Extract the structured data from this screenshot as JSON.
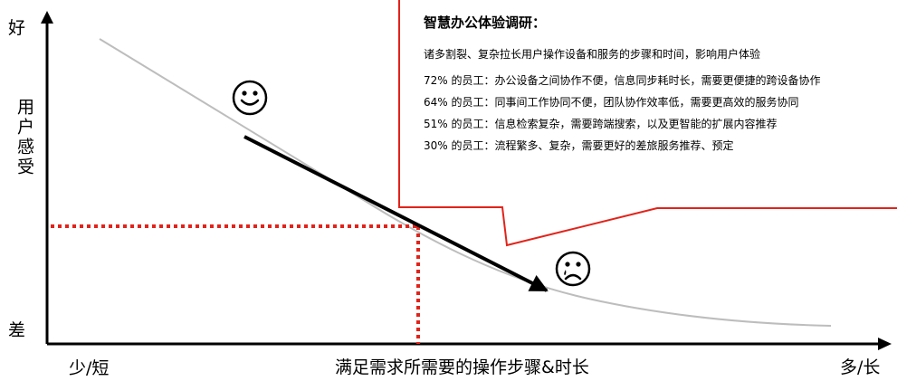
{
  "y_axis": {
    "top": "好",
    "title": "用户感受",
    "bottom": "差"
  },
  "x_axis": {
    "min": "少/短",
    "title": "满足需求所需要的操作步骤&时长",
    "max": "多/长"
  },
  "callout": {
    "title": "智慧办公体验调研：",
    "intro": "诸多割裂、复杂拉长用户操作设备和服务的步骤和时间，影响用户体验",
    "stats": [
      "72% 的员工：办公设备之间协作不便，信息同步耗时长，需要更便捷的跨设备协作",
      "64% 的员工：同事间工作协同不便，团队协作效率低，需要更高效的服务协同",
      "51% 的员工：信息检索复杂，需要跨端搜索，以及更智能的扩展内容推荐",
      "30% 的员工：流程繁多、复杂，需要更好的差旅服务推荐、预定"
    ]
  },
  "icons": {
    "happy": "smiley-face-icon",
    "sad": "crying-face-icon"
  },
  "colors": {
    "callout_border": "#e2231a",
    "guide_dotted": "#e2231a",
    "curve": "#bdbdbd",
    "trend_arrow": "#000000"
  }
}
